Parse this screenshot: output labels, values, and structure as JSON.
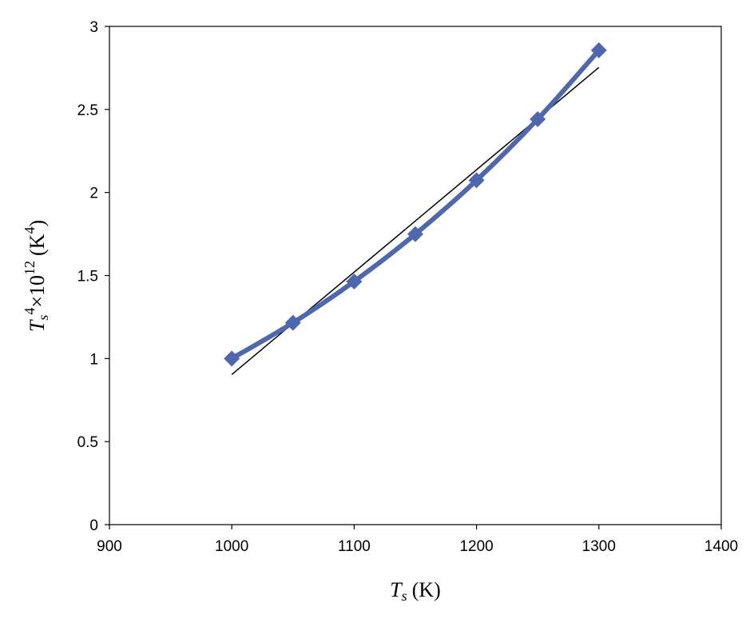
{
  "chart_data": {
    "type": "line",
    "xlabel": {
      "var": "T",
      "sub": "s",
      "unit": "(K)"
    },
    "ylabel": {
      "var": "T",
      "sub": "s",
      "sup": "4",
      "mult": "×10",
      "exp": "12",
      "unit_open": "(K",
      "unit_sup": "4",
      "unit_close": ")"
    },
    "xlim": [
      900,
      1400
    ],
    "ylim": [
      0,
      3
    ],
    "xticks": [
      "900",
      "1000",
      "1100",
      "1200",
      "1300",
      "1400"
    ],
    "yticks": [
      "0",
      "0.5",
      "1",
      "1.5",
      "2",
      "2.5",
      "3"
    ],
    "grid": false,
    "series": [
      {
        "x": [
          1000,
          1050,
          1100,
          1150,
          1200,
          1250,
          1300
        ],
        "y": [
          1.0,
          1.2155,
          1.4641,
          1.749,
          2.0736,
          2.4414,
          2.8561
        ],
        "marker": "diamond",
        "color": "#4f67ad"
      }
    ],
    "trendline": {
      "type": "linear",
      "x": [
        1000,
        1300
      ],
      "y": [
        0.904,
        2.753
      ],
      "color": "#000000"
    }
  }
}
